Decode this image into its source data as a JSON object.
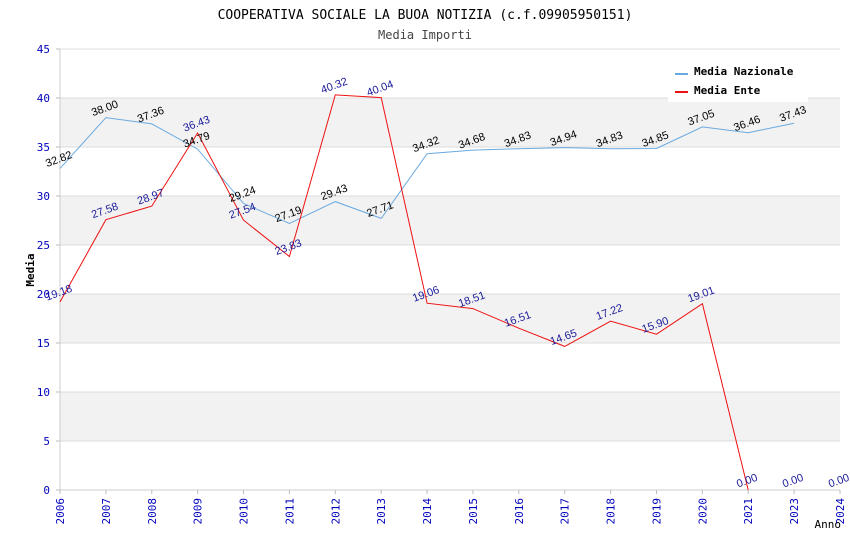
{
  "chart_data": {
    "type": "line",
    "title": "COOPERATIVA SOCIALE LA BUOA NOTIZIA (c.f.09905950151)",
    "subtitle": "Media Importi",
    "xlabel": "Anno",
    "ylabel": "Media",
    "ylim": [
      0,
      45
    ],
    "yticks": [
      "0",
      "5",
      "10",
      "15",
      "20",
      "25",
      "30",
      "35",
      "40",
      "45"
    ],
    "categories": [
      "2006",
      "2007",
      "2008",
      "2009",
      "2010",
      "2011",
      "2012",
      "2013",
      "2014",
      "2015",
      "2016",
      "2017",
      "2018",
      "2019",
      "2020",
      "2021",
      "2023",
      "2024"
    ],
    "grid": true,
    "legend_position": "top-right",
    "series": [
      {
        "name": "Media Nazionale",
        "color": "#6aa9e0",
        "label_color": "#000000",
        "values": [
          32.82,
          38.0,
          37.36,
          34.79,
          29.24,
          27.19,
          29.43,
          27.71,
          34.32,
          34.68,
          34.83,
          34.94,
          34.83,
          34.85,
          37.05,
          36.46,
          37.43,
          null
        ],
        "labels": [
          "32.82",
          "38.00",
          "37.36",
          "34.79",
          "29.24",
          "27.19",
          "29.43",
          "27.71",
          "34.32",
          "34.68",
          "34.83",
          "34.94",
          "34.83",
          "34.85",
          "37.05",
          "36.46",
          "37.43",
          null
        ]
      },
      {
        "name": "Media Ente",
        "color": "#ee1111",
        "label_color": "#1a1a99",
        "values": [
          19.18,
          27.58,
          28.97,
          36.43,
          27.54,
          23.83,
          40.32,
          40.04,
          19.06,
          18.51,
          16.51,
          14.65,
          17.22,
          15.9,
          19.01,
          0.0,
          0.0,
          0.0
        ],
        "labels": [
          "19.18",
          "27.58",
          "28.97",
          "36.43",
          "27.54",
          "23.83",
          "40.32",
          "40.04",
          "19.06",
          "18.51",
          "16.51",
          "14.65",
          "17.22",
          "15.90",
          "19.01",
          "0.00",
          "0.00",
          "0.00"
        ],
        "line_points": 16
      }
    ]
  }
}
